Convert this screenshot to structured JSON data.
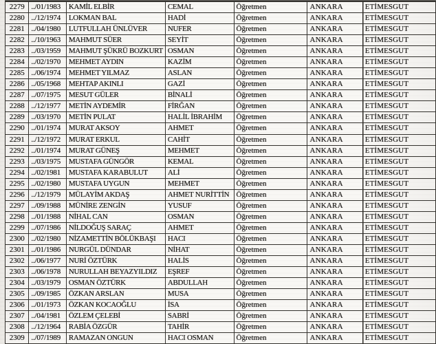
{
  "colors": {
    "paper": "#f4f2ee",
    "ink": "#1f1e1c",
    "grid": "#363430"
  },
  "table": {
    "repeated_values": {
      "occupation": "Öğretmen",
      "province": "ANKARA",
      "district": "ETİMESGUT"
    },
    "rows": [
      [
        "2279",
        "../01/1983",
        "KAMİL ELBİR",
        "CEMAL",
        "Öğretmen",
        "ANKARA",
        "ETİMESGUT"
      ],
      [
        "2280",
        "../12/1974",
        "LOKMAN BAL",
        "HADİ",
        "Öğretmen",
        "ANKARA",
        "ETİMESGUT"
      ],
      [
        "2281",
        "../04/1980",
        "LUTFULLAH ÜNLÜVER",
        "NUFER",
        "Öğretmen",
        "ANKARA",
        "ETİMESGUT"
      ],
      [
        "2282",
        "../10/1963",
        "MAHMUT SÜER",
        "SEYİT",
        "Öğretmen",
        "ANKARA",
        "ETİMESGUT"
      ],
      [
        "2283",
        "../03/1959",
        "MAHMUT ŞÜKRÜ BOZKURT",
        "OSMAN",
        "Öğretmen",
        "ANKARA",
        "ETİMESGUT"
      ],
      [
        "2284",
        "../02/1970",
        "MEHMET AYDIN",
        "KAZİM",
        "Öğretmen",
        "ANKARA",
        "ETİMESGUT"
      ],
      [
        "2285",
        "../06/1974",
        "MEHMET YILMAZ",
        "ASLAN",
        "Öğretmen",
        "ANKARA",
        "ETİMESGUT"
      ],
      [
        "2286",
        "../05/1968",
        "MEHTAP AKINLI",
        "GAZİ",
        "Öğretmen",
        "ANKARA",
        "ETİMESGUT"
      ],
      [
        "2287",
        "../07/1975",
        "MESUT GÜLER",
        "BİNALİ",
        "Öğretmen",
        "ANKARA",
        "ETİMESGUT"
      ],
      [
        "2288",
        "../12/1977",
        "METİN AYDEMİR",
        "FİRĞAN",
        "Öğretmen",
        "ANKARA",
        "ETİMESGUT"
      ],
      [
        "2289",
        "../03/1970",
        "METİN PULAT",
        "HALİL İBRAHİM",
        "Öğretmen",
        "ANKARA",
        "ETİMESGUT"
      ],
      [
        "2290",
        "../01/1974",
        "MURAT AKSOY",
        "AHMET",
        "Öğretmen",
        "ANKARA",
        "ETİMESGUT"
      ],
      [
        "2291",
        "../12/1972",
        "MURAT ERKUL",
        "CAHİT",
        "Öğretmen",
        "ANKARA",
        "ETİMESGUT"
      ],
      [
        "2292",
        "../01/1974",
        "MURAT GÜNEŞ",
        "MEHMET",
        "Öğretmen",
        "ANKARA",
        "ETİMESGUT"
      ],
      [
        "2293",
        "../03/1975",
        "MUSTAFA GÜNGÖR",
        "KEMAL",
        "Öğretmen",
        "ANKARA",
        "ETİMESGUT"
      ],
      [
        "2294",
        "../02/1981",
        "MUSTAFA KARABULUT",
        "ALİ",
        "Öğretmen",
        "ANKARA",
        "ETİMESGUT"
      ],
      [
        "2295",
        "../02/1980",
        "MUSTAFA UYGUN",
        "MEHMET",
        "Öğretmen",
        "ANKARA",
        "ETİMESGUT"
      ],
      [
        "2296",
        "../12/1979",
        "MÜLAYİM AKDAŞ",
        "AHMET NURİTTİN",
        "Öğretmen",
        "ANKARA",
        "ETİMESGUT"
      ],
      [
        "2297",
        "../09/1988",
        "MÜNİRE ZENGİN",
        "YUSUF",
        "Öğretmen",
        "ANKARA",
        "ETİMESGUT"
      ],
      [
        "2298",
        "../01/1988",
        "NİHAL CAN",
        "OSMAN",
        "Öğretmen",
        "ANKARA",
        "ETİMESGUT"
      ],
      [
        "2299",
        "../07/1986",
        "NİLDOĞUŞ SARAÇ",
        "AHMET",
        "Öğretmen",
        "ANKARA",
        "ETİMESGUT"
      ],
      [
        "2300",
        "../02/1980",
        "NİZAMETTİN BÖLÜKBAŞI",
        "HACI",
        "Öğretmen",
        "ANKARA",
        "ETİMESGUT"
      ],
      [
        "2301",
        "../01/1986",
        "NURGÜL DÜNDAR",
        "NİHAT",
        "Öğretmen",
        "ANKARA",
        "ETİMESGUT"
      ],
      [
        "2302",
        "../06/1977",
        "NURİ ÖZTÜRK",
        "HALİS",
        "Öğretmen",
        "ANKARA",
        "ETİMESGUT"
      ],
      [
        "2303",
        "../06/1978",
        "NURULLAH BEYAZYILDIZ",
        "EŞREF",
        "Öğretmen",
        "ANKARA",
        "ETİMESGUT"
      ],
      [
        "2304",
        "../03/1979",
        "OSMAN ÖZTÜRK",
        "ABDULLAH",
        "Öğretmen",
        "ANKARA",
        "ETİMESGUT"
      ],
      [
        "2305",
        "../09/1985",
        "ÖZKAN ARSLAN",
        "MUSA",
        "Öğretmen",
        "ANKARA",
        "ETİMESGUT"
      ],
      [
        "2306",
        "../01/1973",
        "ÖZKAN KOCAOĞLU",
        "İSA",
        "Öğretmen",
        "ANKARA",
        "ETİMESGUT"
      ],
      [
        "2307",
        "../04/1981",
        "ÖZLEM ÇELEBİ",
        "SABRİ",
        "Öğretmen",
        "ANKARA",
        "ETİMESGUT"
      ],
      [
        "2308",
        "../12/1964",
        "RABİA ÖZGÜR",
        "TAHİR",
        "Öğretmen",
        "ANKARA",
        "ETİMESGUT"
      ],
      [
        "2309",
        "../07/1989",
        "RAMAZAN ONGUN",
        "HACI OSMAN",
        "Öğretmen",
        "ANKARA",
        "ETİMESGUT"
      ]
    ]
  }
}
